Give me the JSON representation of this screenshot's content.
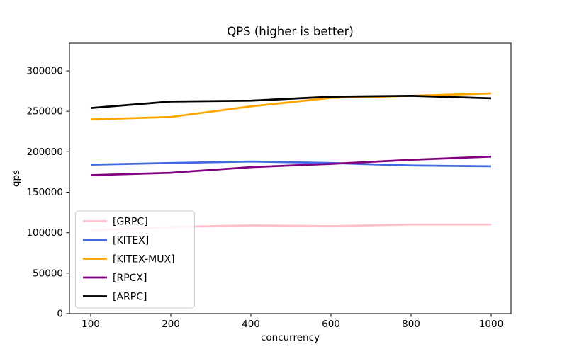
{
  "title": "QPS (higher is better)",
  "chart_data": {
    "type": "line",
    "title": "QPS (higher is better)",
    "xlabel": "concurrency",
    "ylabel": "qps",
    "x_categories": [
      100,
      200,
      400,
      600,
      800,
      1000
    ],
    "x_tick_labels": [
      "100",
      "200",
      "400",
      "600",
      "800",
      "1000"
    ],
    "y_ticks": [
      0,
      50000,
      100000,
      150000,
      200000,
      250000,
      300000
    ],
    "y_tick_labels": [
      "0",
      "50000",
      "100000",
      "150000",
      "200000",
      "250000",
      "300000"
    ],
    "ylim": [
      0,
      334000
    ],
    "grid": false,
    "legend_position": "lower-left",
    "series": [
      {
        "name": "[GRPC]",
        "color": "#ffc0cb",
        "values": [
          103000,
          107000,
          109000,
          108000,
          110000,
          110000
        ]
      },
      {
        "name": "[KITEX]",
        "color": "#4169e1",
        "values": [
          184000,
          186000,
          188000,
          186000,
          183000,
          182000
        ]
      },
      {
        "name": "[KITEX-MUX]",
        "color": "#ffa500",
        "values": [
          240000,
          243000,
          256000,
          266500,
          269000,
          272000
        ]
      },
      {
        "name": "[RPCX]",
        "color": "#800080",
        "values": [
          171000,
          174000,
          181000,
          185000,
          190000,
          194000
        ]
      },
      {
        "name": "[ARPC]",
        "color": "#000000",
        "values": [
          254000,
          262000,
          263000,
          268000,
          269000,
          266000
        ]
      }
    ]
  }
}
